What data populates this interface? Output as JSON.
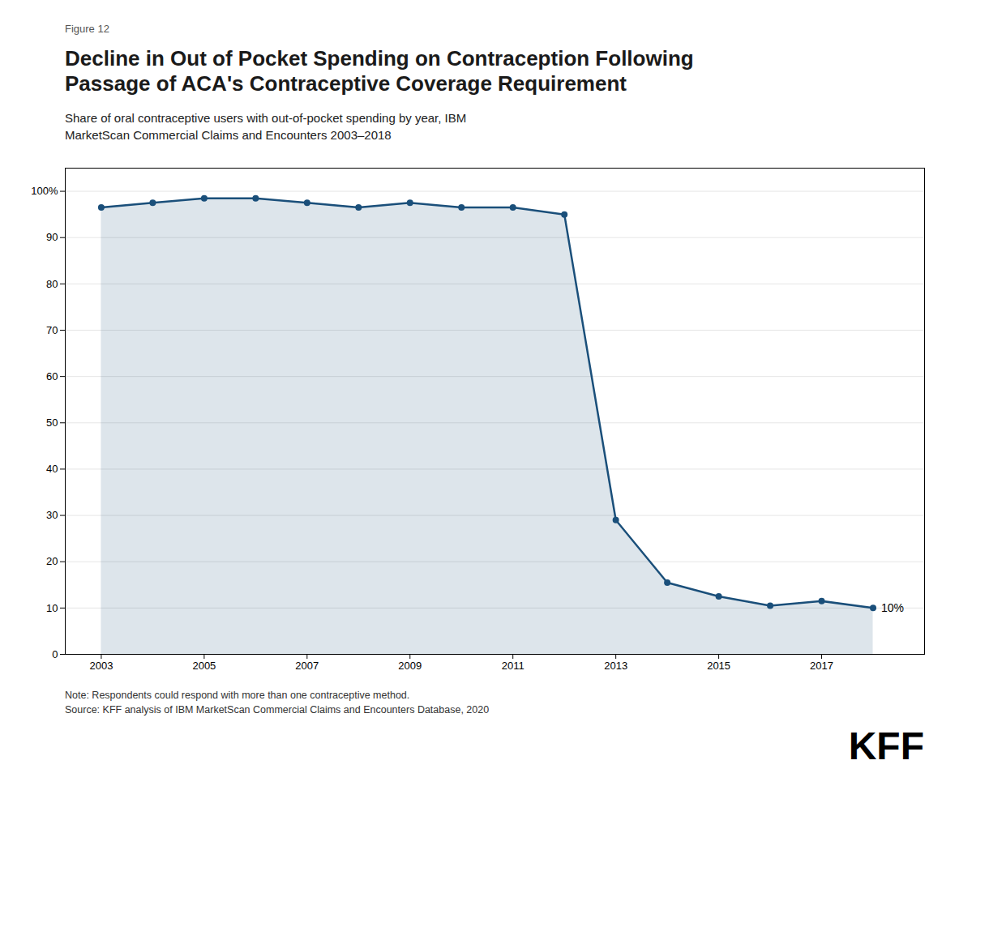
{
  "chart_data": {
    "type": "area",
    "figure_label": "Figure 12",
    "title": "Decline in Out of Pocket Spending on Contraception Following\nPassage of ACA's Contraceptive Coverage Requirement",
    "subtitle": "Share of oral contraceptive users with out-of-pocket spending by year, IBM\nMarketScan Commercial Claims and Encounters 2003–2018",
    "notes": [
      "Note: Respondents could respond with more than one contraceptive method.",
      "Source: KFF analysis of IBM MarketScan Commercial Claims and Encounters Database, 2020"
    ],
    "logo": "KFF",
    "x": [
      2003,
      2004,
      2005,
      2006,
      2007,
      2008,
      2009,
      2010,
      2011,
      2012,
      2013,
      2014,
      2015,
      2016,
      2017,
      2018
    ],
    "values": [
      96.5,
      97.5,
      98.5,
      98.5,
      97.5,
      96.5,
      97.5,
      96.5,
      96.5,
      95.0,
      29.0,
      15.5,
      12.5,
      10.5,
      11.5,
      10.0
    ],
    "color": "#1a4f7a",
    "marker": "circle",
    "annotations": [
      {
        "x": 2018,
        "y": 10.0,
        "text": "10%"
      }
    ],
    "xlim": [
      2002.3,
      2019.0
    ],
    "xticks": [
      2003,
      2005,
      2007,
      2009,
      2011,
      2013,
      2015,
      2017
    ],
    "ylim": [
      0,
      105
    ],
    "yticks": [
      0,
      10,
      20,
      30,
      40,
      50,
      60,
      70,
      80,
      90,
      {
        "value": 100,
        "label": "100%"
      }
    ],
    "grid": true
  }
}
